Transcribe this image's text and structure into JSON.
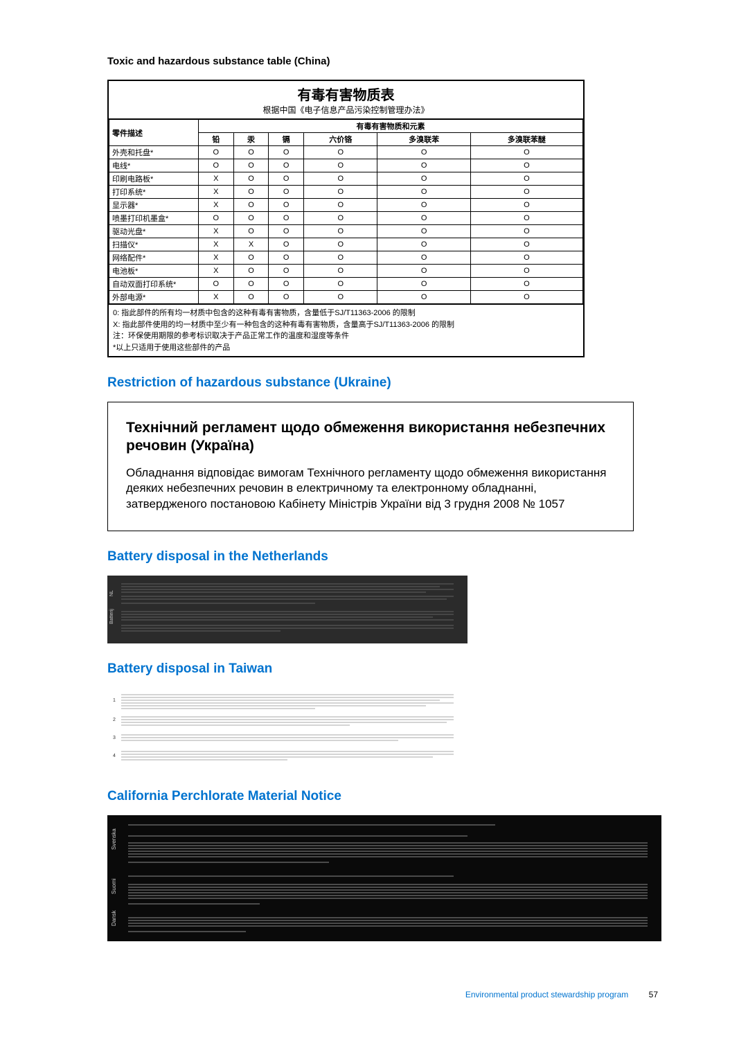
{
  "heading_china": "Toxic and hazardous substance table (China)",
  "china_table": {
    "title": "有毒有害物质表",
    "subtitle": "根据中国《电子信息产品污染控制管理办法》",
    "group_header_left": "零件描述",
    "group_header_right": "有毒有害物质和元素",
    "columns": [
      "铅",
      "汞",
      "镉",
      "六价铬",
      "多溴联苯",
      "多溴联苯醚"
    ],
    "rows": [
      {
        "label": "外壳和托盘*",
        "cells": [
          "O",
          "O",
          "O",
          "O",
          "O",
          "O"
        ]
      },
      {
        "label": "电线*",
        "cells": [
          "O",
          "O",
          "O",
          "O",
          "O",
          "O"
        ]
      },
      {
        "label": "印刷电路板*",
        "cells": [
          "X",
          "O",
          "O",
          "O",
          "O",
          "O"
        ]
      },
      {
        "label": "打印系统*",
        "cells": [
          "X",
          "O",
          "O",
          "O",
          "O",
          "O"
        ]
      },
      {
        "label": "显示器*",
        "cells": [
          "X",
          "O",
          "O",
          "O",
          "O",
          "O"
        ]
      },
      {
        "label": "喷墨打印机墨盒*",
        "cells": [
          "O",
          "O",
          "O",
          "O",
          "O",
          "O"
        ]
      },
      {
        "label": "驱动光盘*",
        "cells": [
          "X",
          "O",
          "O",
          "O",
          "O",
          "O"
        ]
      },
      {
        "label": "扫描仪*",
        "cells": [
          "X",
          "X",
          "O",
          "O",
          "O",
          "O"
        ]
      },
      {
        "label": "网络配件*",
        "cells": [
          "X",
          "O",
          "O",
          "O",
          "O",
          "O"
        ]
      },
      {
        "label": "电池板*",
        "cells": [
          "X",
          "O",
          "O",
          "O",
          "O",
          "O"
        ]
      },
      {
        "label": "自动双面打印系统*",
        "cells": [
          "O",
          "O",
          "O",
          "O",
          "O",
          "O"
        ]
      },
      {
        "label": "外部电源*",
        "cells": [
          "X",
          "O",
          "O",
          "O",
          "O",
          "O"
        ]
      }
    ],
    "footer_lines": [
      "0: 指此部件的所有均一材质中包含的这种有毒有害物质，含量低于SJ/T11363-2006 的限制",
      "X: 指此部件使用的均一材质中至少有一种包含的这种有毒有害物质，含量高于SJ/T11363-2006 的限制",
      "注：环保使用期限的参考标识取决于产品正常工作的温度和湿度等条件",
      "*以上只适用于使用这些部件的产品"
    ]
  },
  "heading_ukraine": "Restriction of hazardous substance (Ukraine)",
  "ukraine": {
    "title": "Технічний регламент щодо обмеження використання небезпечних речовин (Україна)",
    "body": "Обладнання відповідає вимогам Технічного регламенту щодо обмеження використання деяких небезпечних речовин в електричному та електронному обладнанні, затвердженого постановою Кабінету Міністрів України від 3 грудня 2008 № 1057"
  },
  "heading_netherlands": "Battery disposal in the Netherlands",
  "heading_taiwan": "Battery disposal in Taiwan",
  "heading_california": "California Perchlorate Material Notice",
  "footer_link": "Environmental product stewardship program",
  "footer_page": "57",
  "colors": {
    "blue": "#0073cf",
    "black": "#000000",
    "darkbg": "#2b2b2b"
  }
}
